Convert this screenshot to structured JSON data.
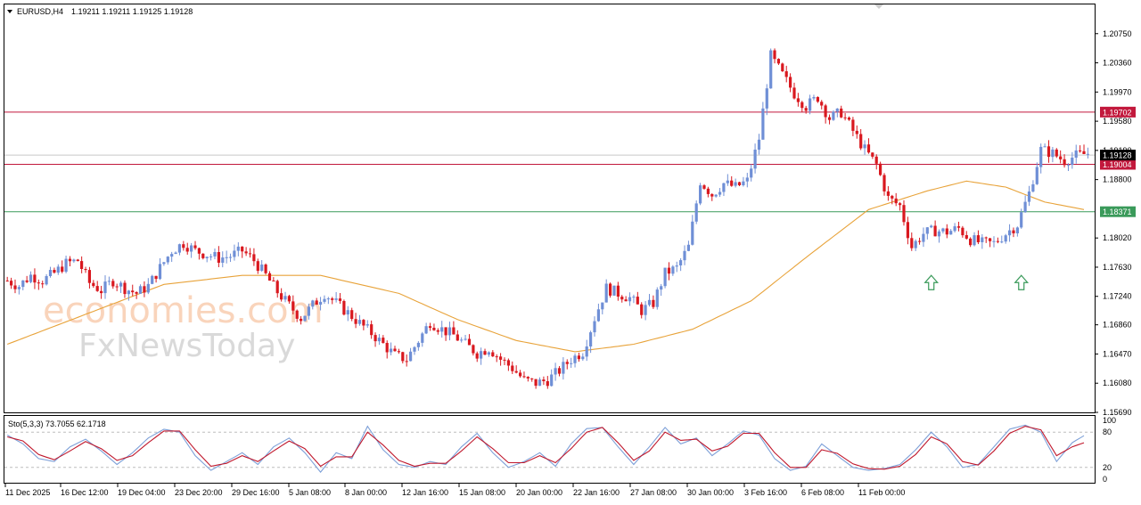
{
  "header": {
    "symbol": "EURUSD,H4",
    "ohlc": "1.19211 1.19211 1.19125 1.19128"
  },
  "watermark": {
    "brand_top": "economies.com",
    "brand_bottom": "FxNewsToday"
  },
  "colors": {
    "bull": "#6f8fd6",
    "bear": "#d9181f",
    "ma": "#e8a33a",
    "resistance": "#c2183c",
    "support": "#3a9a5a",
    "stoch_main": "#7da0d8",
    "stoch_signal": "#c0182c",
    "price_tag": "#000000"
  },
  "chart_data": {
    "type": "candlestick",
    "symbol": "EURUSD",
    "timeframe": "H4",
    "ylim": [
      1.1569,
      1.2114
    ],
    "y_ticks": [
      "1.20750",
      "1.20360",
      "1.19970",
      "1.19580",
      "1.19190",
      "1.18800",
      "1.18020",
      "1.17630",
      "1.17240",
      "1.16860",
      "1.16470",
      "1.16080",
      "1.15690"
    ],
    "x_labels": [
      "11 Dec 2025",
      "16 Dec 12:00",
      "19 Dec 04:00",
      "23 Dec 20:00",
      "29 Dec 16:00",
      "5 Jan 08:00",
      "8 Jan 00:00",
      "12 Jan 16:00",
      "15 Jan 08:00",
      "20 Jan 00:00",
      "22 Jan 16:00",
      "27 Jan 08:00",
      "30 Jan 00:00",
      "3 Feb 16:00",
      "6 Feb 08:00",
      "11 Feb 00:00"
    ],
    "levels": [
      {
        "value": 1.19702,
        "label": "1.19702",
        "color": "#c2183c"
      },
      {
        "value": 1.19004,
        "label": "1.19004",
        "color": "#c2183c"
      },
      {
        "value": 1.18371,
        "label": "1.18371",
        "color": "#3a9a5a"
      }
    ],
    "current_price": {
      "value": 1.19128,
      "label": "1.19128"
    },
    "price_path": [
      [
        0,
        1.1745
      ],
      [
        3,
        1.1738
      ],
      [
        6,
        1.1752
      ],
      [
        9,
        1.1745
      ],
      [
        12,
        1.1755
      ],
      [
        15,
        1.1768
      ],
      [
        18,
        1.1772
      ],
      [
        21,
        1.1742
      ],
      [
        24,
        1.1732
      ],
      [
        27,
        1.1745
      ],
      [
        30,
        1.1735
      ],
      [
        33,
        1.1728
      ],
      [
        36,
        1.1738
      ],
      [
        39,
        1.1762
      ],
      [
        42,
        1.1785
      ],
      [
        45,
        1.1795
      ],
      [
        48,
        1.1785
      ],
      [
        51,
        1.178
      ],
      [
        54,
        1.1775
      ],
      [
        57,
        1.1778
      ],
      [
        60,
        1.1785
      ],
      [
        63,
        1.1772
      ],
      [
        66,
        1.1752
      ],
      [
        69,
        1.173
      ],
      [
        72,
        1.1712
      ],
      [
        75,
        1.1695
      ],
      [
        78,
        1.1712
      ],
      [
        81,
        1.1728
      ],
      [
        84,
        1.1715
      ],
      [
        87,
        1.1702
      ],
      [
        90,
        1.1688
      ],
      [
        93,
        1.1675
      ],
      [
        96,
        1.166
      ],
      [
        99,
        1.1645
      ],
      [
        102,
        1.164
      ],
      [
        105,
        1.1665
      ],
      [
        108,
        1.169
      ],
      [
        111,
        1.168
      ],
      [
        114,
        1.1672
      ],
      [
        117,
        1.166
      ],
      [
        120,
        1.1648
      ],
      [
        123,
        1.1655
      ],
      [
        126,
        1.164
      ],
      [
        129,
        1.1628
      ],
      [
        132,
        1.1612
      ],
      [
        135,
        1.1608
      ],
      [
        138,
        1.1612
      ],
      [
        141,
        1.1625
      ],
      [
        144,
        1.164
      ],
      [
        147,
        1.165
      ],
      [
        150,
        1.1695
      ],
      [
        153,
        1.1735
      ],
      [
        156,
        1.1728
      ],
      [
        159,
        1.1722
      ],
      [
        162,
        1.1705
      ],
      [
        165,
        1.1715
      ],
      [
        168,
        1.1755
      ],
      [
        171,
        1.1762
      ],
      [
        174,
        1.179
      ],
      [
        177,
        1.1878
      ],
      [
        180,
        1.186
      ],
      [
        183,
        1.1875
      ],
      [
        186,
        1.187
      ],
      [
        189,
        1.1878
      ],
      [
        192,
        1.1935
      ],
      [
        195,
        1.2045
      ],
      [
        198,
        1.202
      ],
      [
        201,
        1.1995
      ],
      [
        204,
        1.1978
      ],
      [
        207,
        1.199
      ],
      [
        210,
        1.1962
      ],
      [
        213,
        1.197
      ],
      [
        216,
        1.1945
      ],
      [
        219,
        1.192
      ],
      [
        222,
        1.19
      ],
      [
        225,
        1.1855
      ],
      [
        228,
        1.1845
      ],
      [
        231,
        1.179
      ],
      [
        234,
        1.1808
      ],
      [
        237,
        1.1812
      ],
      [
        240,
        1.181
      ],
      [
        243,
        1.1815
      ],
      [
        246,
        1.18
      ],
      [
        249,
        1.1795
      ],
      [
        252,
        1.1795
      ],
      [
        255,
        1.1808
      ],
      [
        258,
        1.182
      ],
      [
        261,
        1.1862
      ],
      [
        264,
        1.192
      ],
      [
        267,
        1.1915
      ],
      [
        270,
        1.1905
      ],
      [
        273,
        1.1912
      ],
      [
        276,
        1.1915
      ]
    ],
    "moving_average": [
      [
        0,
        1.166
      ],
      [
        20,
        1.17
      ],
      [
        40,
        1.174
      ],
      [
        60,
        1.1752
      ],
      [
        80,
        1.1752
      ],
      [
        100,
        1.1728
      ],
      [
        115,
        1.1693
      ],
      [
        130,
        1.1665
      ],
      [
        145,
        1.165
      ],
      [
        160,
        1.166
      ],
      [
        175,
        1.168
      ],
      [
        190,
        1.1718
      ],
      [
        205,
        1.178
      ],
      [
        220,
        1.184
      ],
      [
        235,
        1.1865
      ],
      [
        245,
        1.1878
      ],
      [
        255,
        1.187
      ],
      [
        265,
        1.185
      ],
      [
        275,
        1.184
      ]
    ],
    "subchart": {
      "indicator": "Sto(5,3,3)",
      "main_value": "73.7055",
      "signal_value": "62.1718",
      "ylim": [
        0,
        100
      ],
      "y_ticks": [
        "100",
        "80",
        "20",
        "0"
      ],
      "levels": [
        80,
        20
      ],
      "main": [
        [
          0,
          75
        ],
        [
          4,
          60
        ],
        [
          8,
          35
        ],
        [
          12,
          30
        ],
        [
          16,
          55
        ],
        [
          20,
          68
        ],
        [
          24,
          48
        ],
        [
          28,
          25
        ],
        [
          32,
          45
        ],
        [
          36,
          70
        ],
        [
          40,
          85
        ],
        [
          44,
          80
        ],
        [
          48,
          40
        ],
        [
          52,
          15
        ],
        [
          56,
          30
        ],
        [
          60,
          45
        ],
        [
          64,
          25
        ],
        [
          68,
          55
        ],
        [
          72,
          70
        ],
        [
          76,
          45
        ],
        [
          80,
          12
        ],
        [
          84,
          45
        ],
        [
          88,
          35
        ],
        [
          92,
          90
        ],
        [
          96,
          50
        ],
        [
          100,
          25
        ],
        [
          104,
          20
        ],
        [
          108,
          30
        ],
        [
          112,
          25
        ],
        [
          116,
          55
        ],
        [
          120,
          78
        ],
        [
          124,
          45
        ],
        [
          128,
          20
        ],
        [
          132,
          30
        ],
        [
          136,
          45
        ],
        [
          140,
          22
        ],
        [
          144,
          60
        ],
        [
          148,
          86
        ],
        [
          152,
          88
        ],
        [
          156,
          55
        ],
        [
          160,
          25
        ],
        [
          164,
          55
        ],
        [
          168,
          88
        ],
        [
          172,
          60
        ],
        [
          176,
          70
        ],
        [
          180,
          40
        ],
        [
          184,
          60
        ],
        [
          188,
          82
        ],
        [
          192,
          75
        ],
        [
          196,
          35
        ],
        [
          200,
          15
        ],
        [
          204,
          22
        ],
        [
          208,
          60
        ],
        [
          212,
          40
        ],
        [
          216,
          20
        ],
        [
          220,
          15
        ],
        [
          224,
          18
        ],
        [
          228,
          25
        ],
        [
          232,
          50
        ],
        [
          236,
          80
        ],
        [
          240,
          55
        ],
        [
          244,
          20
        ],
        [
          248,
          25
        ],
        [
          252,
          55
        ],
        [
          256,
          85
        ],
        [
          260,
          92
        ],
        [
          264,
          80
        ],
        [
          268,
          30
        ],
        [
          272,
          62
        ],
        [
          275,
          74
        ]
      ],
      "signal": [
        [
          0,
          72
        ],
        [
          4,
          65
        ],
        [
          8,
          42
        ],
        [
          12,
          33
        ],
        [
          16,
          48
        ],
        [
          20,
          64
        ],
        [
          24,
          52
        ],
        [
          28,
          32
        ],
        [
          32,
          40
        ],
        [
          36,
          62
        ],
        [
          40,
          82
        ],
        [
          44,
          82
        ],
        [
          48,
          50
        ],
        [
          52,
          22
        ],
        [
          56,
          27
        ],
        [
          60,
          40
        ],
        [
          64,
          30
        ],
        [
          68,
          48
        ],
        [
          72,
          65
        ],
        [
          76,
          52
        ],
        [
          80,
          22
        ],
        [
          84,
          38
        ],
        [
          88,
          38
        ],
        [
          92,
          80
        ],
        [
          96,
          58
        ],
        [
          100,
          32
        ],
        [
          104,
          22
        ],
        [
          108,
          27
        ],
        [
          112,
          27
        ],
        [
          116,
          48
        ],
        [
          120,
          72
        ],
        [
          124,
          52
        ],
        [
          128,
          28
        ],
        [
          132,
          28
        ],
        [
          136,
          40
        ],
        [
          140,
          28
        ],
        [
          144,
          52
        ],
        [
          148,
          80
        ],
        [
          152,
          88
        ],
        [
          156,
          62
        ],
        [
          160,
          32
        ],
        [
          164,
          48
        ],
        [
          168,
          80
        ],
        [
          172,
          66
        ],
        [
          176,
          68
        ],
        [
          180,
          48
        ],
        [
          184,
          56
        ],
        [
          188,
          78
        ],
        [
          192,
          78
        ],
        [
          196,
          45
        ],
        [
          200,
          20
        ],
        [
          204,
          20
        ],
        [
          208,
          50
        ],
        [
          212,
          44
        ],
        [
          216,
          26
        ],
        [
          220,
          18
        ],
        [
          224,
          17
        ],
        [
          228,
          22
        ],
        [
          232,
          42
        ],
        [
          236,
          72
        ],
        [
          240,
          60
        ],
        [
          244,
          30
        ],
        [
          248,
          24
        ],
        [
          252,
          48
        ],
        [
          256,
          78
        ],
        [
          260,
          90
        ],
        [
          264,
          84
        ],
        [
          268,
          40
        ],
        [
          272,
          55
        ],
        [
          275,
          62
        ]
      ]
    }
  }
}
